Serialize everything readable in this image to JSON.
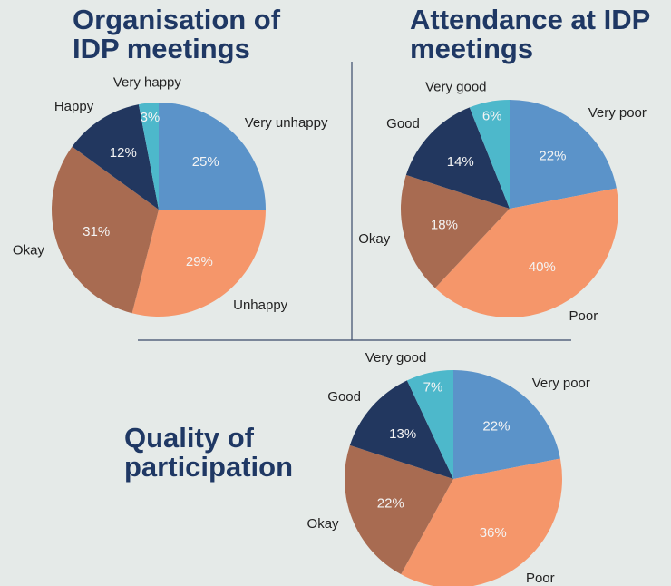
{
  "chart_data": [
    {
      "type": "pie",
      "title": "Organisation of IDP meetings",
      "categories": [
        "Very unhappy",
        "Unhappy",
        "Okay",
        "Happy",
        "Very happy"
      ],
      "values": [
        25,
        29,
        31,
        12,
        3
      ],
      "value_labels": [
        "25%",
        "29%",
        "31%",
        "12%",
        "3%"
      ],
      "colors": [
        "#5b93c9",
        "#f5966a",
        "#a86b51",
        "#22375f",
        "#4db8cb"
      ]
    },
    {
      "type": "pie",
      "title": "Attendance at IDP meetings",
      "categories": [
        "Very poor",
        "Poor",
        "Okay",
        "Good",
        "Very good"
      ],
      "values": [
        22,
        40,
        18,
        14,
        6
      ],
      "value_labels": [
        "22%",
        "40%",
        "18%",
        "14%",
        "6%"
      ],
      "colors": [
        "#5b93c9",
        "#f5966a",
        "#a86b51",
        "#22375f",
        "#4db8cb"
      ]
    },
    {
      "type": "pie",
      "title": "Quality of participation",
      "categories": [
        "Very poor",
        "Poor",
        "Okay",
        "Good",
        "Very good"
      ],
      "values": [
        22,
        36,
        22,
        13,
        7
      ],
      "value_labels": [
        "22%",
        "36%",
        "22%",
        "13%",
        "7%"
      ],
      "colors": [
        "#5b93c9",
        "#f5966a",
        "#a86b51",
        "#22375f",
        "#4db8cb"
      ]
    }
  ]
}
